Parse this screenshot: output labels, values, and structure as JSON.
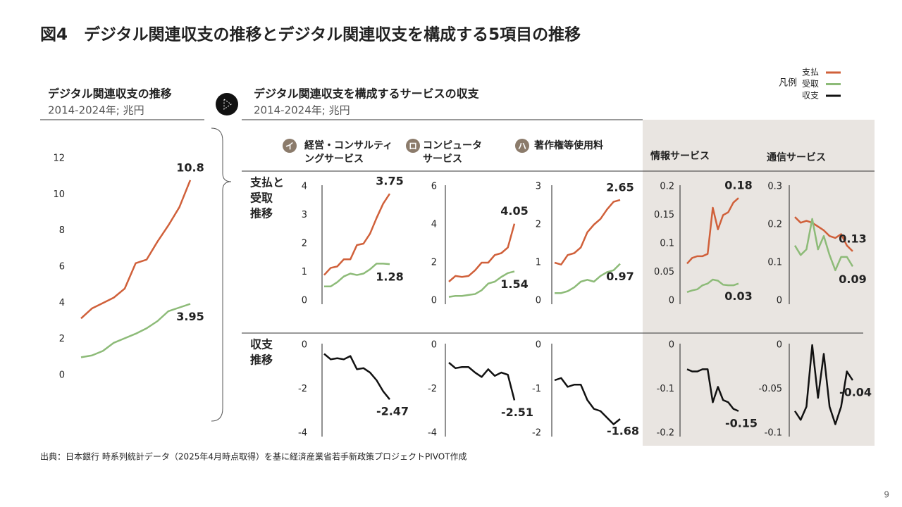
{
  "title": "図4　デジタル関連収支の推移とデジタル関連収支を構成する5項目の推移",
  "section_title": "デジタル関連収支を構成するサービスの収支",
  "section_subtitle": "2014-2024年; 兆円",
  "row_labels": [
    [
      "支払と",
      "受取",
      "推移"
    ],
    [
      "収支",
      "推移"
    ]
  ],
  "legend": {
    "title": "凡例",
    "items": [
      {
        "name": "支払",
        "color": "#d0603a"
      },
      {
        "name": "受取",
        "color": "#8dbb78"
      },
      {
        "name": "収支",
        "color": "#111111"
      }
    ]
  },
  "source": "出典：日本銀行 時系列統計データ（2025年4月時点取得）を基に経済産業省若手新政策プロジェクトPIVOT作成",
  "page_number": "9",
  "chart_data": [
    {
      "type": "line",
      "title": [
        "デジタル関連収支の推移"
      ],
      "subtitle": "2014-2024年; 兆円",
      "ylim": [
        0,
        12
      ],
      "yticks": [
        0,
        2,
        4,
        6,
        8,
        10,
        12
      ],
      "series": [
        {
          "color": "#d0603a",
          "values": [
            3.15,
            3.7,
            4.0,
            4.3,
            4.8,
            6.2,
            6.4,
            7.4,
            8.3,
            9.3,
            10.8
          ]
        },
        {
          "color": "#8dbb78",
          "values": [
            1.0,
            1.1,
            1.35,
            1.8,
            2.05,
            2.3,
            2.6,
            3.0,
            3.55,
            3.75,
            3.95
          ]
        }
      ]
    },
    {
      "type": "line",
      "badge": "イ",
      "title": [
        "経営・コンサルティ",
        "ングサービス"
      ],
      "ylim": [
        0,
        4
      ],
      "yticks": [
        0,
        1,
        2,
        3,
        4
      ],
      "series": [
        {
          "color": "#d0603a",
          "values": [
            0.9,
            1.15,
            1.2,
            1.45,
            1.45,
            1.95,
            2.0,
            2.35,
            2.9,
            3.4,
            3.75
          ]
        },
        {
          "color": "#8dbb78",
          "values": [
            0.5,
            0.5,
            0.65,
            0.85,
            0.95,
            0.9,
            0.95,
            1.1,
            1.3,
            1.3,
            1.28
          ]
        }
      ]
    },
    {
      "type": "line",
      "badge": "ロ",
      "title": [
        "コンピュータ",
        "サービス"
      ],
      "ylim": [
        0,
        6
      ],
      "yticks": [
        0,
        2,
        4,
        6
      ],
      "series": [
        {
          "color": "#d0603a",
          "values": [
            1.0,
            1.3,
            1.25,
            1.3,
            1.6,
            2.0,
            2.0,
            2.4,
            2.5,
            2.8,
            4.05
          ]
        },
        {
          "color": "#8dbb78",
          "values": [
            0.2,
            0.25,
            0.25,
            0.3,
            0.35,
            0.55,
            0.9,
            1.0,
            1.25,
            1.45,
            1.54
          ]
        }
      ]
    },
    {
      "type": "line",
      "badge": "ハ",
      "title": [
        "著作権等使用料"
      ],
      "ylim": [
        0,
        3
      ],
      "yticks": [
        0,
        1,
        2,
        3
      ],
      "series": [
        {
          "color": "#d0603a",
          "values": [
            1.0,
            0.95,
            1.2,
            1.25,
            1.4,
            1.8,
            2.0,
            2.15,
            2.4,
            2.6,
            2.65
          ]
        },
        {
          "color": "#8dbb78",
          "values": [
            0.2,
            0.2,
            0.25,
            0.35,
            0.5,
            0.55,
            0.5,
            0.65,
            0.75,
            0.8,
            0.97
          ]
        }
      ]
    },
    {
      "type": "line",
      "title": [
        "情報サービス"
      ],
      "ylim": [
        0,
        0.2
      ],
      "yticks": [
        0,
        0.05,
        0.1,
        0.15,
        0.2
      ],
      "series": [
        {
          "color": "#d0603a",
          "values": [
            0.065,
            0.075,
            0.078,
            0.078,
            0.082,
            0.163,
            0.125,
            0.15,
            0.155,
            0.172,
            0.18
          ]
        },
        {
          "color": "#8dbb78",
          "values": [
            0.015,
            0.018,
            0.02,
            0.027,
            0.03,
            0.037,
            0.035,
            0.028,
            0.027,
            0.027,
            0.03
          ]
        }
      ]
    },
    {
      "type": "line",
      "title": [
        "通信サービス"
      ],
      "ylim": [
        0,
        0.3
      ],
      "yticks": [
        0,
        0.1,
        0.2,
        0.3
      ],
      "series": [
        {
          "color": "#d0603a",
          "values": [
            0.22,
            0.205,
            0.21,
            0.205,
            0.195,
            0.185,
            0.17,
            0.165,
            0.175,
            0.145,
            0.13
          ]
        },
        {
          "color": "#8dbb78",
          "values": [
            0.145,
            0.12,
            0.135,
            0.215,
            0.135,
            0.17,
            0.12,
            0.08,
            0.115,
            0.115,
            0.09
          ]
        }
      ]
    },
    {
      "type": "line",
      "ylim": [
        -4,
        0
      ],
      "yticks": [
        0,
        -2,
        -4
      ],
      "series": [
        {
          "color": "#111111",
          "values": [
            -0.4,
            -0.65,
            -0.6,
            -0.65,
            -0.5,
            -1.1,
            -1.05,
            -1.25,
            -1.6,
            -2.1,
            -2.47
          ]
        }
      ]
    },
    {
      "type": "line",
      "ylim": [
        -4,
        0
      ],
      "yticks": [
        0,
        -2,
        -4
      ],
      "series": [
        {
          "color": "#111111",
          "values": [
            -0.8,
            -1.05,
            -1.0,
            -1.0,
            -1.25,
            -1.45,
            -1.1,
            -1.4,
            -1.25,
            -1.35,
            -2.51
          ]
        }
      ]
    },
    {
      "type": "line",
      "ylim": [
        -2,
        0
      ],
      "yticks": [
        0,
        -1,
        -2
      ],
      "series": [
        {
          "color": "#111111",
          "values": [
            -0.8,
            -0.75,
            -0.95,
            -0.9,
            -0.9,
            -1.25,
            -1.45,
            -1.5,
            -1.65,
            -1.8,
            -1.68
          ]
        }
      ]
    },
    {
      "type": "line",
      "ylim": [
        -0.2,
        0
      ],
      "yticks": [
        0,
        -0.1,
        -0.2
      ],
      "series": [
        {
          "color": "#111111",
          "values": [
            -0.055,
            -0.06,
            -0.06,
            -0.055,
            -0.055,
            -0.13,
            -0.095,
            -0.125,
            -0.13,
            -0.145,
            -0.15
          ]
        }
      ]
    },
    {
      "type": "line",
      "ylim": [
        -0.1,
        0
      ],
      "yticks": [
        0,
        -0.05,
        -0.1
      ],
      "series": [
        {
          "color": "#111111",
          "values": [
            -0.075,
            -0.085,
            -0.07,
            0.0,
            -0.06,
            -0.01,
            -0.07,
            -0.09,
            -0.07,
            -0.03,
            -0.04
          ]
        }
      ]
    }
  ]
}
